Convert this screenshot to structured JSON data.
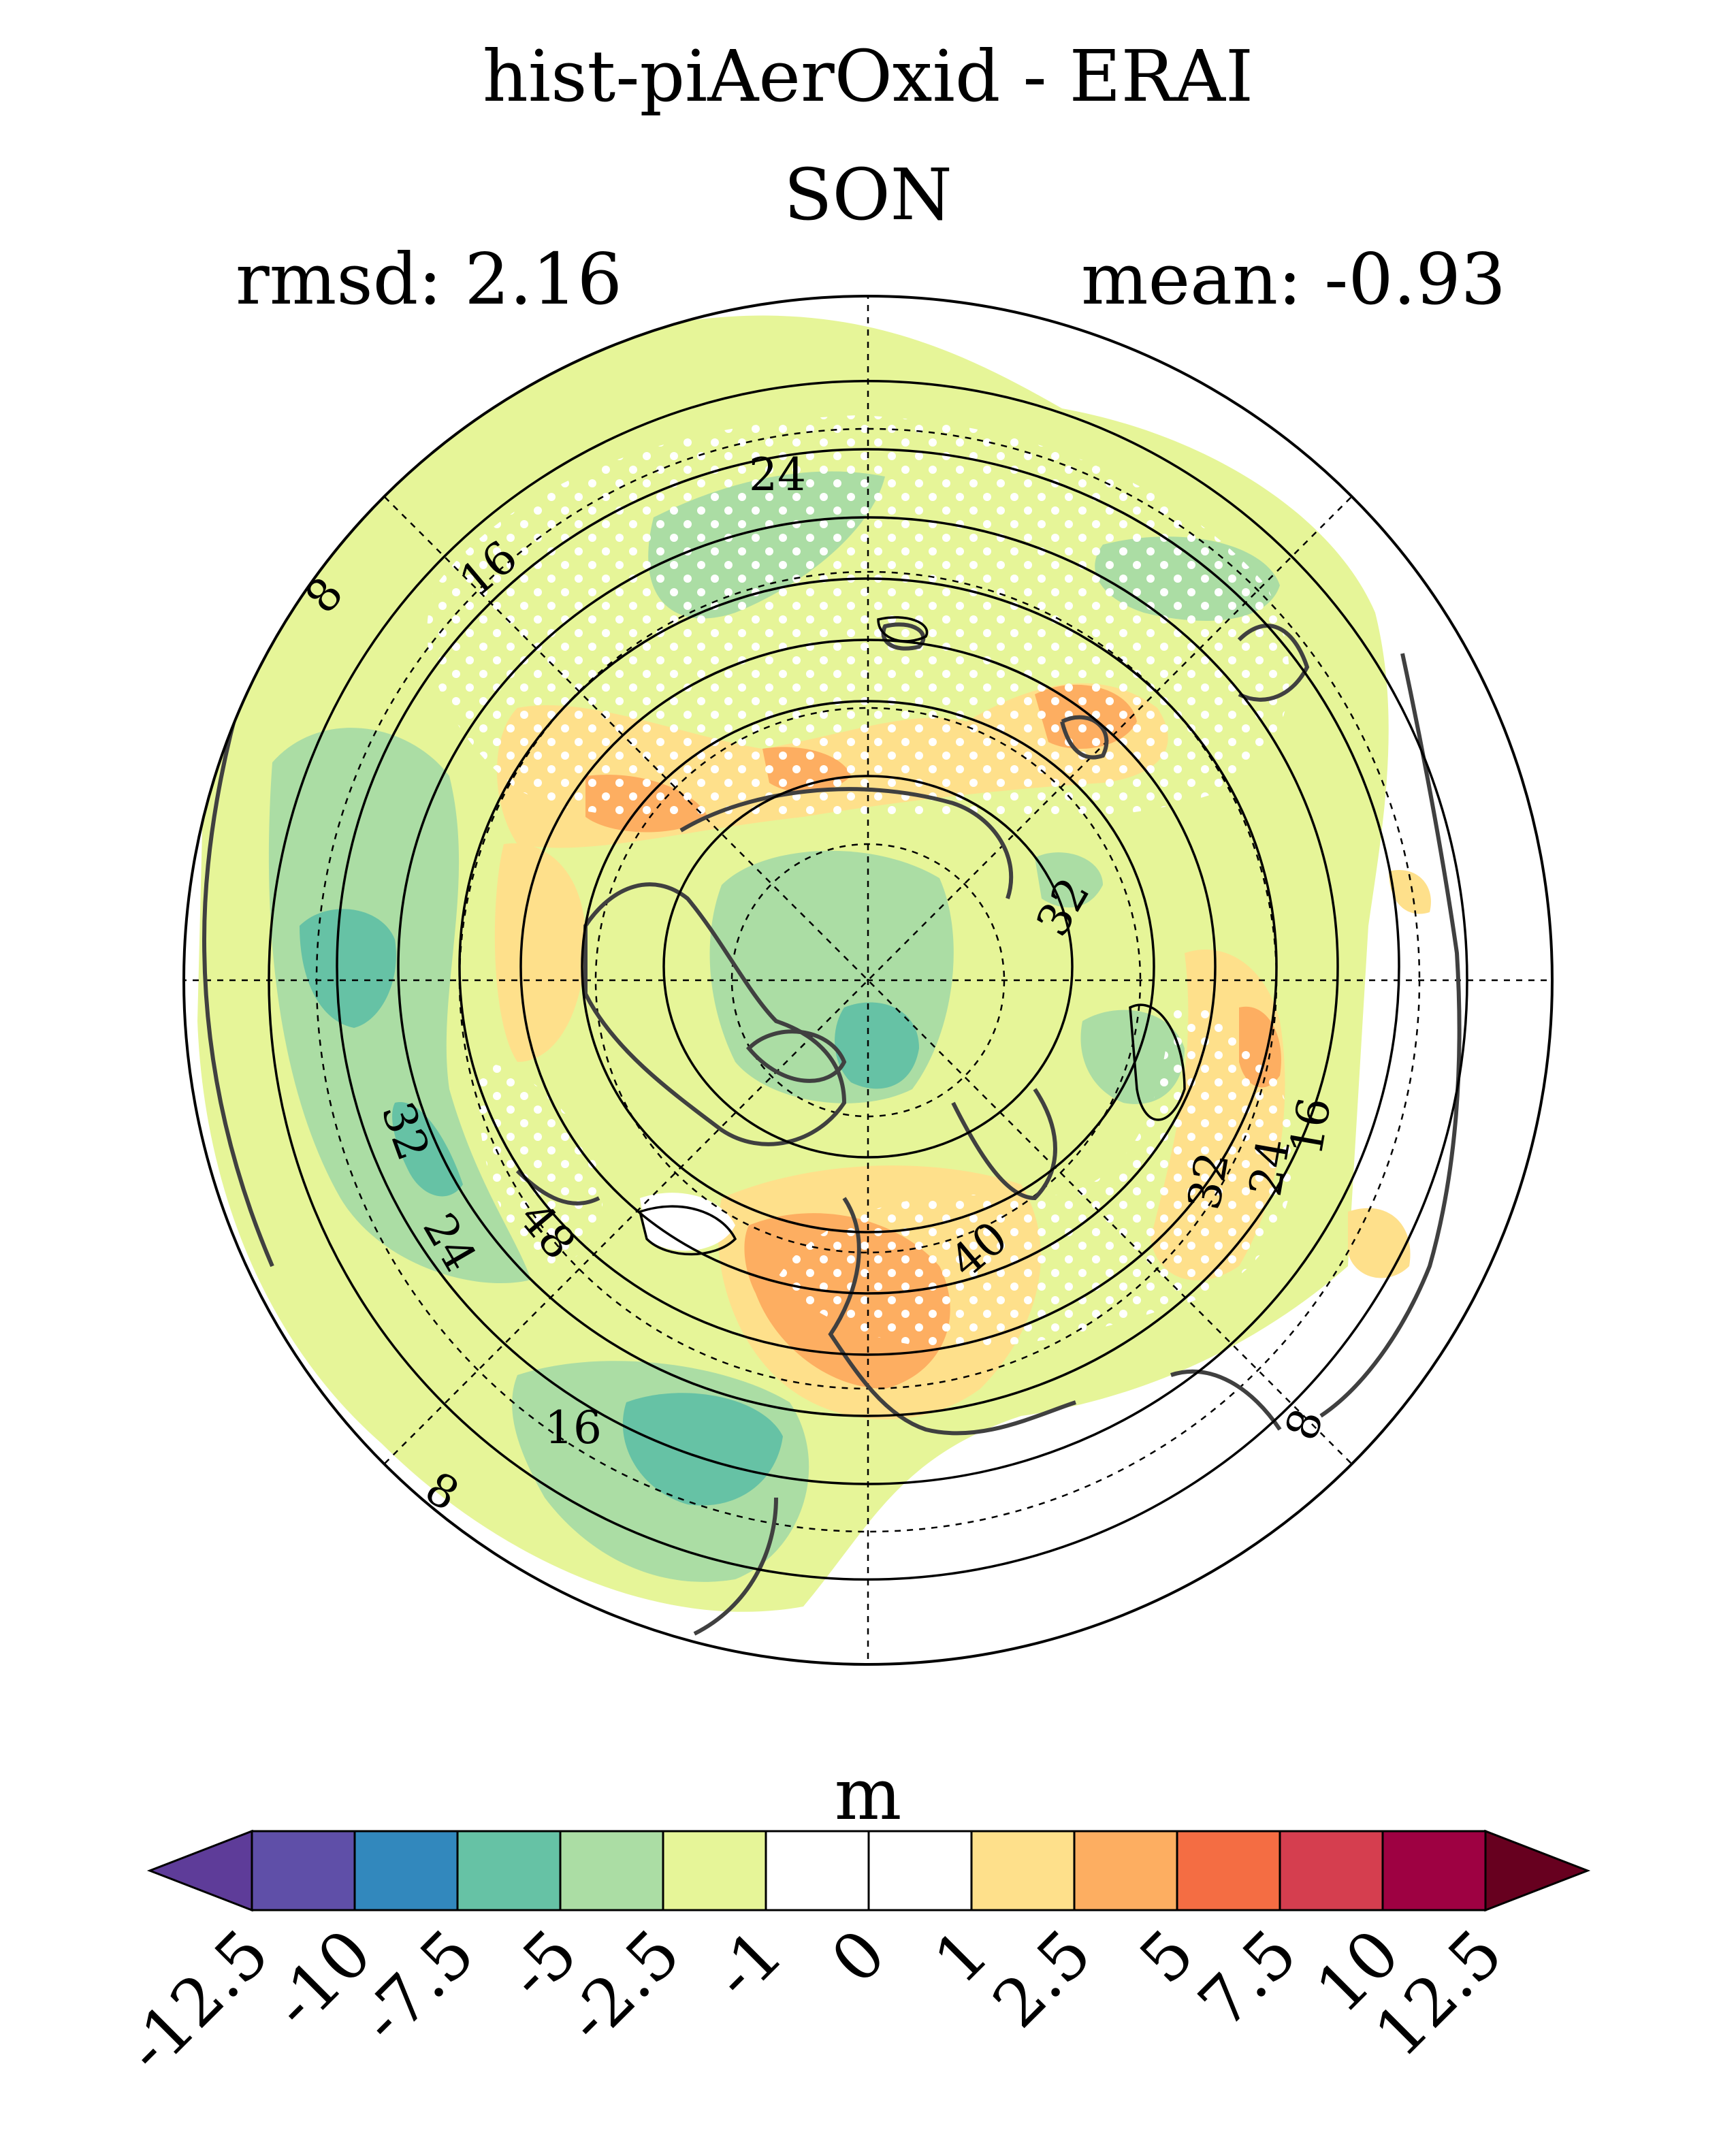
{
  "header": {
    "title": "hist-piAerOxid - ERAI",
    "season": "SON",
    "rmsd_label": "rmsd: 2.16",
    "mean_label": "mean: -0.93"
  },
  "colorbar": {
    "unit": "m",
    "colors": [
      "#5e3c99",
      "#5f4fa8",
      "#3288bd",
      "#66c2a5",
      "#abdda4",
      "#e6f598",
      "#ffffff",
      "#ffffff",
      "#fee08b",
      "#fdae61",
      "#f46d43",
      "#d53e4f",
      "#9e0142",
      "#67001f"
    ],
    "tick_labels": [
      "-12.5",
      "-10",
      "-7.5",
      "-5",
      "-2.5",
      "-1",
      "0",
      "1",
      "2.5",
      "5",
      "7.5",
      "10",
      "12.5"
    ]
  },
  "map": {
    "projection": "north polar stereographic",
    "contour_labels": [
      "8",
      "16",
      "24",
      "32",
      "40",
      "48",
      "32",
      "24",
      "16",
      "8",
      "16",
      "24",
      "32",
      "8",
      "16",
      "24",
      "32"
    ]
  }
}
